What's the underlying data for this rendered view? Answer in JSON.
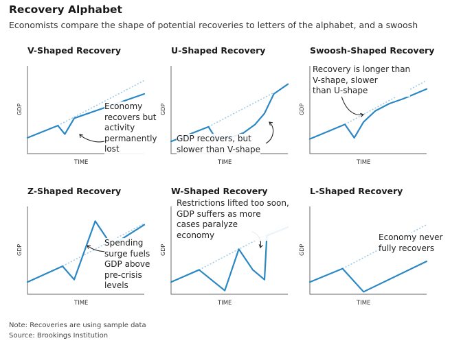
{
  "header": {
    "title": "Recovery Alphabet",
    "subtitle": "Economists compare the shape of potential recoveries to letters of the alphabet, and a swoosh"
  },
  "footer": {
    "note": "Note: Recoveries are using sample data",
    "source": "Source: Brookings Institution"
  },
  "colors": {
    "line": "#2a87c4",
    "trend": "#9ccbe8",
    "axis": "#666666",
    "arrow": "#222222"
  },
  "chart_data": [
    {
      "type": "line",
      "title": "V-Shaped Recovery",
      "xlabel": "TIME",
      "ylabel": "GDP",
      "annotation": "Economy\nrecovers but\nactivity\npermanently\nlost",
      "series": [
        {
          "x": [
            0,
            26,
            32,
            40,
            100
          ],
          "y": [
            13,
            23,
            16,
            29,
            49
          ]
        }
      ],
      "trend": {
        "x": [
          26,
          100
        ],
        "y": [
          23,
          60
        ]
      }
    },
    {
      "type": "line",
      "title": "U-Shaped Recovery",
      "xlabel": "TIME",
      "ylabel": "GDP",
      "annotation": "GDP recovers, but\nslower than V-shape",
      "series": [
        {
          "x": [
            0,
            32,
            38,
            50,
            62,
            72,
            80,
            88,
            100
          ],
          "y": [
            10,
            22,
            13,
            13,
            17,
            24,
            33,
            49,
            57
          ]
        }
      ],
      "trend": {
        "x": [
          32,
          88
        ],
        "y": [
          22,
          50
        ]
      }
    },
    {
      "type": "line",
      "title": "Swoosh-Shaped Recovery",
      "xlabel": "TIME",
      "ylabel": "GDP",
      "annotation": "Recovery is longer than\nV-shape, slower\nthan U-shape",
      "series": [
        {
          "x": [
            0,
            30,
            38,
            46,
            56,
            68,
            80,
            100
          ],
          "y": [
            12,
            24,
            13,
            26,
            35,
            41,
            45,
            53
          ]
        }
      ],
      "trend": {
        "x": [
          30,
          100
        ],
        "y": [
          24,
          60
        ]
      }
    },
    {
      "type": "line",
      "title": "Z-Shaped Recovery",
      "xlabel": "TIME",
      "ylabel": "GDP",
      "annotation": "Spending\nsurge fuels\nGDP above\npre-crisis\nlevels",
      "series": [
        {
          "x": [
            0,
            30,
            40,
            58,
            72,
            100
          ],
          "y": [
            10,
            23,
            12,
            60,
            40,
            57
          ]
        }
      ],
      "trend": {
        "x": [
          30,
          100
        ],
        "y": [
          23,
          58
        ]
      }
    },
    {
      "type": "line",
      "title": "W-Shaped Recovery",
      "xlabel": "TIME",
      "ylabel": "GDP",
      "annotation": "Restrictions lifted too soon,\nGDP suffers as more\ncases paralyze\neconomy",
      "series": [
        {
          "x": [
            0,
            24,
            46,
            58,
            70,
            80,
            82,
            100
          ],
          "y": [
            10,
            20,
            3,
            37,
            20,
            12,
            48,
            55
          ]
        }
      ],
      "trend": {
        "x": [
          24,
          100
        ],
        "y": [
          20,
          58
        ]
      }
    },
    {
      "type": "line",
      "title": "L-Shaped Recovery",
      "xlabel": "TIME",
      "ylabel": "GDP",
      "annotation": "Economy never\nfully recovers",
      "series": [
        {
          "x": [
            0,
            28,
            46,
            100
          ],
          "y": [
            10,
            21,
            2,
            27
          ]
        }
      ],
      "trend": {
        "x": [
          28,
          100
        ],
        "y": [
          21,
          57
        ]
      }
    }
  ]
}
